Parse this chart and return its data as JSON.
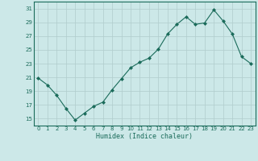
{
  "x": [
    0,
    1,
    2,
    3,
    4,
    5,
    6,
    7,
    8,
    9,
    10,
    11,
    12,
    13,
    14,
    15,
    16,
    17,
    18,
    19,
    20,
    21,
    22,
    23
  ],
  "y": [
    20.9,
    19.9,
    18.4,
    16.5,
    14.8,
    15.8,
    16.8,
    17.4,
    19.2,
    20.8,
    22.4,
    23.2,
    23.8,
    25.1,
    27.3,
    28.7,
    29.8,
    28.7,
    28.9,
    30.8,
    29.2,
    27.3,
    24.0,
    23.0
  ],
  "xlabel": "Humidex (Indice chaleur)",
  "yticks": [
    15,
    17,
    19,
    21,
    23,
    25,
    27,
    29,
    31
  ],
  "xticks": [
    0,
    1,
    2,
    3,
    4,
    5,
    6,
    7,
    8,
    9,
    10,
    11,
    12,
    13,
    14,
    15,
    16,
    17,
    18,
    19,
    20,
    21,
    22,
    23
  ],
  "ylim": [
    14.0,
    32.0
  ],
  "xlim": [
    -0.5,
    23.5
  ],
  "line_color": "#1a6b5a",
  "marker_color": "#1a6b5a",
  "bg_color": "#cce8e8",
  "grid_color": "#b0cccc",
  "xlabel_color": "#1a6b5a",
  "tick_label_color": "#1a6b5a",
  "border_color": "#1a6b5a"
}
